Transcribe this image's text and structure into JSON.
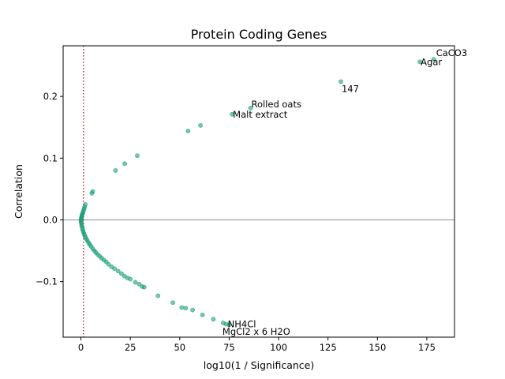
{
  "chart_data": {
    "type": "scatter",
    "title": "Protein Coding Genes",
    "xlabel": "log10(1 / Significance)",
    "ylabel": "Correlation",
    "xlim": [
      -9,
      189
    ],
    "ylim": [
      -0.19,
      0.282
    ],
    "xticks": [
      0,
      25,
      50,
      75,
      100,
      125,
      150,
      175
    ],
    "xtick_labels": [
      "0",
      "25",
      "50",
      "75",
      "100",
      "125",
      "150",
      "175"
    ],
    "yticks": [
      -0.1,
      0.0,
      0.1,
      0.2
    ],
    "ytick_labels": [
      "−0.1",
      "0.0",
      "0.1",
      "0.2"
    ],
    "grid": false,
    "point_color": "#1a9e77",
    "threshold_line": {
      "x": 1.3,
      "color": "#d62728",
      "style": "dotted"
    },
    "zero_line": {
      "y": 0.0,
      "color": "#808080"
    },
    "points": [
      [
        178.5,
        0.26
      ],
      [
        171.5,
        0.256
      ],
      [
        131.5,
        0.224
      ],
      [
        85.8,
        0.181
      ],
      [
        76.5,
        0.171
      ],
      [
        60.5,
        0.153
      ],
      [
        54.2,
        0.144
      ],
      [
        28.5,
        0.104
      ],
      [
        22.2,
        0.091
      ],
      [
        17.5,
        0.08
      ],
      [
        6.0,
        0.046
      ],
      [
        5.5,
        0.043
      ],
      [
        2.2,
        0.025
      ],
      [
        1.9,
        0.021
      ],
      [
        1.6,
        0.018
      ],
      [
        1.3,
        0.015
      ],
      [
        1.0,
        0.012
      ],
      [
        0.8,
        0.01
      ],
      [
        0.6,
        0.008
      ],
      [
        0.45,
        0.006
      ],
      [
        0.3,
        0.004
      ],
      [
        0.2,
        0.002
      ],
      [
        0.1,
        0.001
      ],
      [
        0.05,
        -0.001
      ],
      [
        0.1,
        -0.003
      ],
      [
        0.2,
        -0.005
      ],
      [
        0.35,
        -0.008
      ],
      [
        0.5,
        -0.01
      ],
      [
        0.7,
        -0.013
      ],
      [
        0.9,
        -0.016
      ],
      [
        1.2,
        -0.019
      ],
      [
        1.5,
        -0.022
      ],
      [
        1.9,
        -0.025
      ],
      [
        2.3,
        -0.028
      ],
      [
        2.8,
        -0.031
      ],
      [
        3.3,
        -0.034
      ],
      [
        3.9,
        -0.037
      ],
      [
        4.5,
        -0.04
      ],
      [
        5.2,
        -0.043
      ],
      [
        6.0,
        -0.047
      ],
      [
        6.8,
        -0.05
      ],
      [
        7.6,
        -0.053
      ],
      [
        8.5,
        -0.056
      ],
      [
        9.5,
        -0.059
      ],
      [
        10.5,
        -0.062
      ],
      [
        11.6,
        -0.065
      ],
      [
        12.8,
        -0.068
      ],
      [
        14.0,
        -0.072
      ],
      [
        15.5,
        -0.076
      ],
      [
        17.0,
        -0.079
      ],
      [
        18.8,
        -0.083
      ],
      [
        20.5,
        -0.087
      ],
      [
        22.0,
        -0.091
      ],
      [
        23.5,
        -0.094
      ],
      [
        25.0,
        -0.096
      ],
      [
        27.5,
        -0.101
      ],
      [
        29.5,
        -0.104
      ],
      [
        31.0,
        -0.108
      ],
      [
        32.0,
        -0.109
      ],
      [
        39.0,
        -0.123
      ],
      [
        46.5,
        -0.134
      ],
      [
        51.0,
        -0.142
      ],
      [
        53.0,
        -0.143
      ],
      [
        56.5,
        -0.146
      ],
      [
        61.5,
        -0.154
      ],
      [
        67.0,
        -0.161
      ],
      [
        72.0,
        -0.167
      ],
      [
        73.5,
        -0.169
      ],
      [
        75.0,
        -0.17
      ]
    ],
    "annotations": [
      {
        "text": "CaCO3",
        "x": 178.5,
        "y": 0.26
      },
      {
        "text": "Agar",
        "x": 171.5,
        "y": 0.256
      },
      {
        "text": "147",
        "x": 131.5,
        "y": 0.224
      },
      {
        "text": "Rolled oats",
        "x": 85.8,
        "y": 0.181
      },
      {
        "text": "Malt extract",
        "x": 76.5,
        "y": 0.171
      },
      {
        "text": "NH4Cl",
        "x": 73.5,
        "y": -0.169
      },
      {
        "text": "MgCl2 x 6 H2O",
        "x": 72.0,
        "y": -0.167
      }
    ]
  }
}
